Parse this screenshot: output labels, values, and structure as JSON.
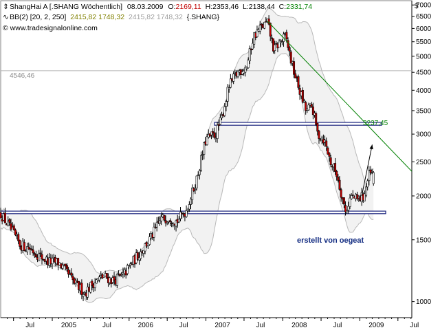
{
  "header": {
    "line1": {
      "name": "ShangHai A [.SHANG  Wöchentlich]",
      "date": "08.03.2009",
      "open_label": "O:",
      "open": "2169,11",
      "high": "H:2353,46",
      "low": "L:2138,44",
      "close_label": "C:",
      "close": "2331,74"
    },
    "line2": {
      "name": "BB(2) [20, 2, 250]",
      "values_a": "2415,82 1748,32",
      "values_b": "2415,82 1748,32",
      "symbol": "{.SHANG}"
    },
    "line3": {
      "copyright": "© www.tradesignalonline.com"
    }
  },
  "currency_symbol": "$",
  "annotations": {
    "level_left": "4546,46",
    "level_right": "3237,45",
    "credit": "erstellt von oegeat"
  },
  "colors": {
    "candle_up": "#ffffff",
    "candle_down": "#c00000",
    "open_value": "#c00000",
    "close_value": "#008000",
    "bb_a": "#808000",
    "bb_b": "#a0a0a0",
    "trendline": "#008000",
    "band_fill": "#f2f2f2"
  },
  "chart_data": {
    "type": "candlestick",
    "series": [
      {
        "name": "ShangHai A [.SHANG  Wöchentlich]"
      },
      {
        "name": "BB(2) [20, 2, 250]"
      }
    ],
    "x_tick_labels": [
      "Jul",
      "2005",
      "Jul",
      "2006",
      "Jul",
      "2007",
      "Jul",
      "2008",
      "Jul",
      "2009",
      "Jul"
    ],
    "y_tick_labels": [
      "7000",
      "6500",
      "6000",
      "5500",
      "5000",
      "4500",
      "4000",
      "3500",
      "3000",
      "2500",
      "2000",
      "1500",
      "1000"
    ],
    "y_scale": "log",
    "ylim": [
      900,
      7200
    ],
    "xlim": [
      "2004-05-01",
      "2009-09-05"
    ],
    "weekly_close_points": [
      [
        "2004-05-01",
        1780
      ],
      [
        "2004-06-15",
        1620
      ],
      [
        "2004-08-01",
        1450
      ],
      [
        "2004-09-15",
        1420
      ],
      [
        "2004-11-01",
        1350
      ],
      [
        "2004-12-15",
        1300
      ],
      [
        "2005-02-01",
        1290
      ],
      [
        "2005-03-15",
        1200
      ],
      [
        "2005-04-20",
        1120
      ],
      [
        "2005-06-05",
        1060
      ],
      [
        "2005-07-15",
        1130
      ],
      [
        "2005-09-01",
        1180
      ],
      [
        "2005-10-15",
        1150
      ],
      [
        "2005-12-01",
        1180
      ],
      [
        "2006-01-15",
        1290
      ],
      [
        "2006-03-01",
        1400
      ],
      [
        "2006-04-15",
        1520
      ],
      [
        "2006-06-01",
        1720
      ],
      [
        "2006-07-15",
        1740
      ],
      [
        "2006-08-15",
        1690
      ],
      [
        "2006-10-01",
        1830
      ],
      [
        "2006-11-15",
        2200
      ],
      [
        "2007-01-01",
        2900
      ],
      [
        "2007-02-15",
        3000
      ],
      [
        "2007-03-15",
        3300
      ],
      [
        "2007-04-20",
        4100
      ],
      [
        "2007-06-01",
        4500
      ],
      [
        "2007-07-15",
        4700
      ],
      [
        "2007-08-15",
        5700
      ],
      [
        "2007-09-15",
        6000
      ],
      [
        "2007-10-20",
        6250
      ],
      [
        "2007-11-20",
        5200
      ],
      [
        "2007-12-20",
        5500
      ],
      [
        "2008-01-15",
        5700
      ],
      [
        "2008-02-15",
        4700
      ],
      [
        "2008-03-15",
        4100
      ],
      [
        "2008-04-20",
        3500
      ],
      [
        "2008-05-20",
        3600
      ],
      [
        "2008-06-15",
        3000
      ],
      [
        "2008-07-15",
        2900
      ],
      [
        "2008-08-15",
        2500
      ],
      [
        "2008-09-15",
        2300
      ],
      [
        "2008-10-25",
        1800
      ],
      [
        "2008-11-20",
        2000
      ],
      [
        "2008-12-20",
        1950
      ],
      [
        "2009-01-20",
        2000
      ],
      [
        "2009-02-15",
        2300
      ],
      [
        "2009-03-08",
        2331.74
      ]
    ],
    "last_candle": {
      "date": "2009-03-08",
      "open": 2169.11,
      "high": 2353.46,
      "low": 2138.44,
      "close": 2331.74
    },
    "bollinger_last": {
      "upper": 2415.82,
      "lower": 1748.32
    },
    "horizontal_levels": [
      4546.46
    ],
    "support_zone": [
      1780,
      1810
    ],
    "resistance_zone": [
      3180,
      3240
    ],
    "trendline": {
      "points": [
        [
          "2007-10-20",
          6300
        ],
        [
          "2009-09-05",
          2350
        ]
      ]
    },
    "arrow": {
      "from": [
        "2009-01-10",
        2000
      ],
      "to": [
        "2009-03-01",
        2800
      ]
    }
  }
}
